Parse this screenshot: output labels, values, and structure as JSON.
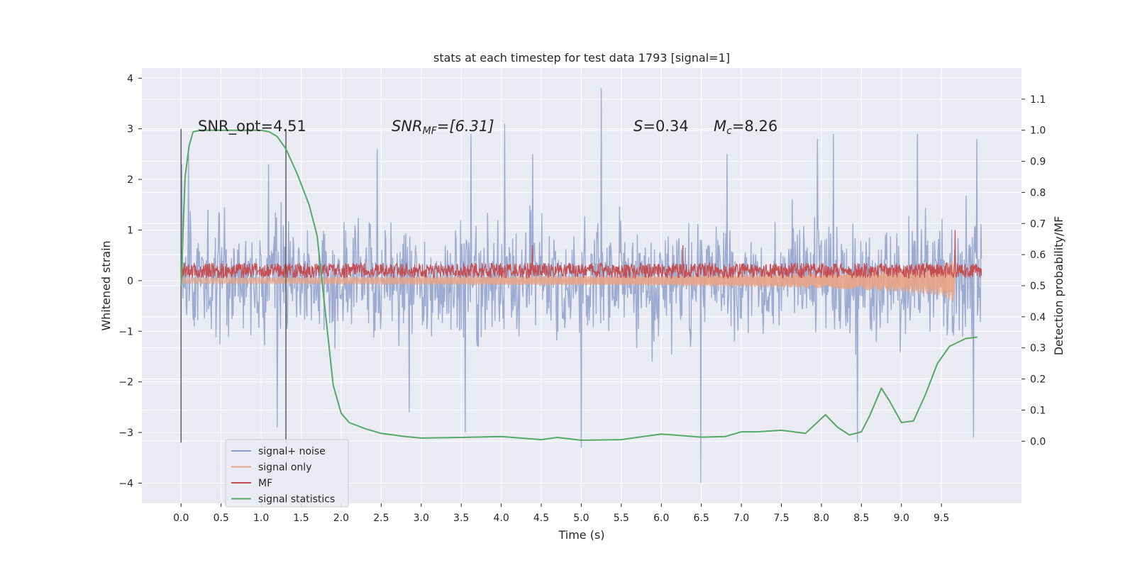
{
  "chart_data": {
    "type": "line",
    "title": "stats at each timestep for test data 1793 [signal=1]",
    "xlabel": "Time (s)",
    "ylabel": "Whitened strain",
    "ylabel_right": "Detection probability/MF",
    "xlim": [
      -0.49,
      10.5
    ],
    "ylim": [
      -4.4,
      4.2
    ],
    "ylim_right": [
      -0.2,
      1.2
    ],
    "x_ticks": [
      "0.0",
      "0.5",
      "1.0",
      "1.5",
      "2.0",
      "2.5",
      "3.0",
      "3.5",
      "4.0",
      "4.5",
      "5.0",
      "5.5",
      "6.0",
      "6.5",
      "7.0",
      "7.5",
      "8.0",
      "8.5",
      "9.0",
      "9.5"
    ],
    "y_ticks": [
      "4",
      "3",
      "2",
      "1",
      "0",
      "−1",
      "−2",
      "−3",
      "−4"
    ],
    "y_right_ticks": [
      "1.1",
      "1.0",
      "0.9",
      "0.8",
      "0.7",
      "0.6",
      "0.5",
      "0.4",
      "0.3",
      "0.2",
      "0.1",
      "0.0"
    ],
    "grid": true,
    "legend_position": "lower-left",
    "annotations": {
      "snr_opt": "SNR_opt=4.51",
      "snr_mf_label": "SNR",
      "snr_mf_sub": "MF",
      "snr_mf_value": "=[6.31]",
      "s_label": "S",
      "s_value": "=0.34",
      "mc_label": "M",
      "mc_sub": "c",
      "mc_value": "=8.26"
    },
    "vertical_lines": [
      0.0,
      1.31
    ],
    "series": [
      {
        "name": "signal+ noise",
        "color": "#8da0cb",
        "axis": "left",
        "t_range": [
          0.0,
          10.0
        ],
        "envelope_upper": 1.7,
        "envelope_lower": -1.6,
        "peaks": [
          [
            0.01,
            2.3
          ],
          [
            0.09,
            2.5
          ],
          [
            1.09,
            2.3
          ],
          [
            2.45,
            2.6
          ],
          [
            3.62,
            2.9
          ],
          [
            4.04,
            3.1
          ],
          [
            4.39,
            2.5
          ],
          [
            5.25,
            3.8
          ],
          [
            6.82,
            2.5
          ],
          [
            7.95,
            2.8
          ],
          [
            8.15,
            2.9
          ],
          [
            9.2,
            2.9
          ],
          [
            9.94,
            2.8
          ],
          [
            6.49,
            -4.0
          ],
          [
            5.0,
            -3.3
          ],
          [
            3.55,
            -3.0
          ],
          [
            1.2,
            -2.9
          ],
          [
            2.85,
            -2.6
          ],
          [
            8.45,
            -3.2
          ],
          [
            9.9,
            -3.1
          ]
        ]
      },
      {
        "name": "signal only",
        "color": "#e9a385",
        "axis": "left",
        "t_range": [
          0.0,
          9.67
        ],
        "chirp_amplitude": [
          [
            0.0,
            0.06
          ],
          [
            6.0,
            0.1
          ],
          [
            8.0,
            0.15
          ],
          [
            9.0,
            0.22
          ],
          [
            9.5,
            0.3
          ],
          [
            9.67,
            0.45
          ]
        ]
      },
      {
        "name": "MF",
        "color": "#c44e52",
        "axis": "left",
        "t_range": [
          0.0,
          10.0
        ],
        "base_level": 0.05,
        "noise_amplitude": 0.3,
        "spikes": [
          [
            4.39,
            0.7
          ],
          [
            6.27,
            0.7
          ],
          [
            9.67,
            1.0
          ]
        ]
      },
      {
        "name": "signal statistics",
        "color": "#55a868",
        "axis": "right",
        "points": [
          [
            0.0,
            0.5
          ],
          [
            0.05,
            0.85
          ],
          [
            0.1,
            0.95
          ],
          [
            0.15,
            0.995
          ],
          [
            0.25,
            1.0
          ],
          [
            1.0,
            1.0
          ],
          [
            1.1,
            0.995
          ],
          [
            1.2,
            0.98
          ],
          [
            1.31,
            0.94
          ],
          [
            1.45,
            0.86
          ],
          [
            1.6,
            0.76
          ],
          [
            1.7,
            0.66
          ],
          [
            1.8,
            0.42
          ],
          [
            1.9,
            0.18
          ],
          [
            2.0,
            0.09
          ],
          [
            2.1,
            0.06
          ],
          [
            2.3,
            0.04
          ],
          [
            2.5,
            0.025
          ],
          [
            2.8,
            0.015
          ],
          [
            3.0,
            0.01
          ],
          [
            3.5,
            0.012
          ],
          [
            4.0,
            0.015
          ],
          [
            4.5,
            0.005
          ],
          [
            4.7,
            0.012
          ],
          [
            5.0,
            0.003
          ],
          [
            5.5,
            0.005
          ],
          [
            6.0,
            0.023
          ],
          [
            6.5,
            0.013
          ],
          [
            6.8,
            0.015
          ],
          [
            7.0,
            0.03
          ],
          [
            7.2,
            0.03
          ],
          [
            7.5,
            0.035
          ],
          [
            7.8,
            0.025
          ],
          [
            8.05,
            0.085
          ],
          [
            8.2,
            0.045
          ],
          [
            8.35,
            0.02
          ],
          [
            8.5,
            0.03
          ],
          [
            8.6,
            0.08
          ],
          [
            8.75,
            0.17
          ],
          [
            8.85,
            0.13
          ],
          [
            9.0,
            0.06
          ],
          [
            9.15,
            0.065
          ],
          [
            9.3,
            0.15
          ],
          [
            9.45,
            0.25
          ],
          [
            9.6,
            0.305
          ],
          [
            9.8,
            0.33
          ],
          [
            9.95,
            0.335
          ]
        ]
      }
    ]
  }
}
